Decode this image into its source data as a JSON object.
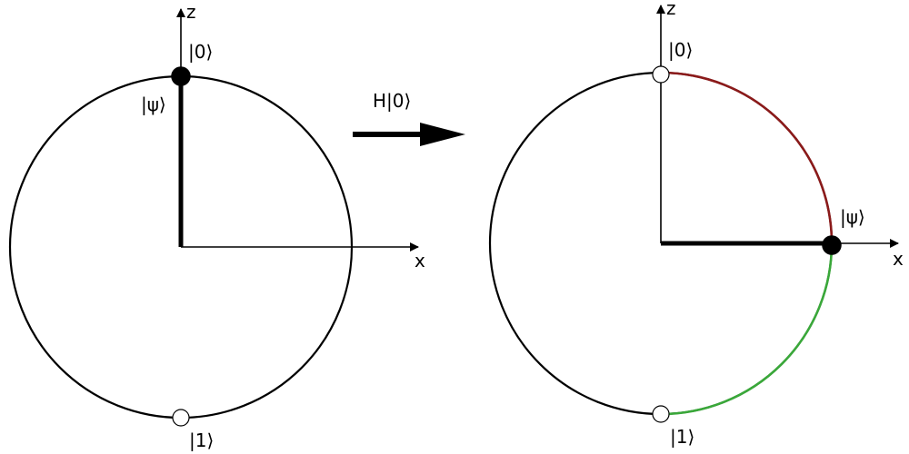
{
  "left_panel": {
    "z_label": "z",
    "x_label": "x",
    "ket0_label": "|0⟩",
    "ket1_label": "|1⟩",
    "psi_label": "|ψ⟩"
  },
  "operation": {
    "label": "H|0⟩"
  },
  "right_panel": {
    "z_label": "z",
    "x_label": "x",
    "ket0_label": "|0⟩",
    "ket1_label": "|1⟩",
    "psi_label": "|ψ⟩"
  },
  "colors": {
    "upper_arc": "#8b1a1a",
    "lower_arc": "#3aa83a",
    "state_marker": "#000000",
    "basis_marker": "#ffffff"
  }
}
